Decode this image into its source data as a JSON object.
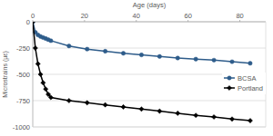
{
  "chart_data": {
    "type": "line",
    "x_label": "Age (days)",
    "y_label": "Microstrains (µε)",
    "x": [
      0,
      1,
      2,
      3,
      4,
      5,
      6,
      7,
      14,
      21,
      28,
      35,
      42,
      49,
      56,
      63,
      70,
      77,
      84
    ],
    "series": [
      {
        "name": "BCSA",
        "color": "#2e5c8a",
        "marker": "circle",
        "values": [
          0,
          -100,
          -125,
          -140,
          -150,
          -160,
          -170,
          -180,
          -230,
          -260,
          -280,
          -300,
          -315,
          -330,
          -345,
          -355,
          -365,
          -380,
          -395
        ]
      },
      {
        "name": "Portland",
        "color": "#000000",
        "marker": "diamond",
        "values": [
          0,
          -250,
          -400,
          -500,
          -580,
          -640,
          -690,
          -720,
          -750,
          -770,
          -790,
          -810,
          -830,
          -850,
          -870,
          -890,
          -905,
          -925,
          -940
        ]
      }
    ],
    "xlim": [
      0,
      90
    ],
    "xticks": [
      0,
      20,
      40,
      60,
      80
    ],
    "ylim": [
      -1000,
      0
    ],
    "yticks": [
      0,
      -250,
      -500,
      -750,
      -1000
    ],
    "grid": true,
    "legend": "right"
  }
}
